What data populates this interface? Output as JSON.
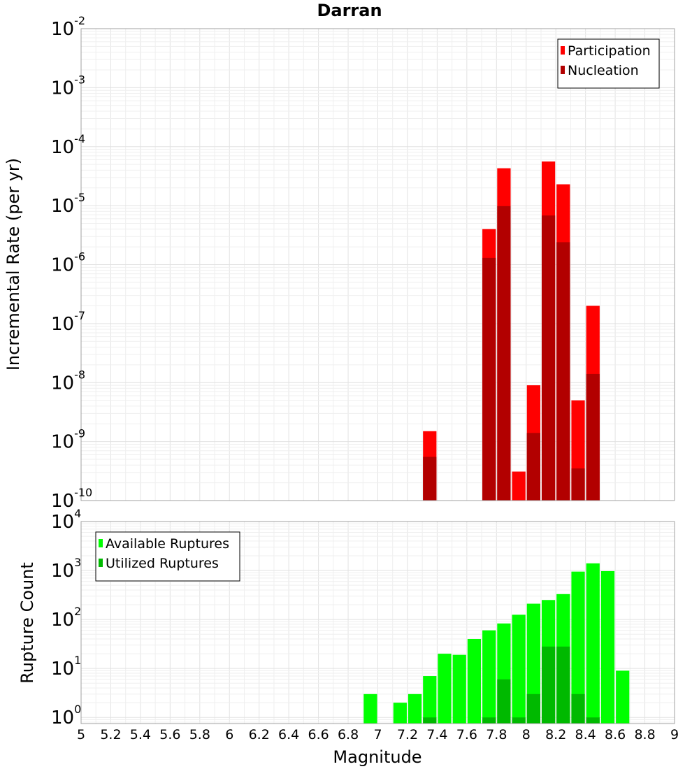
{
  "chart_data": [
    {
      "type": "bar",
      "title": "Darran",
      "xlabel": "",
      "ylabel": "Incremental Rate (per yr)",
      "yscale": "log",
      "xlim": [
        5,
        9
      ],
      "ylim": [
        1e-10,
        0.01
      ],
      "ytick_exponents": [
        "-2",
        "-3",
        "-4",
        "-5",
        "-6",
        "-7",
        "-8",
        "-9",
        "-10"
      ],
      "grid": true,
      "legend_position": "top-right",
      "bar_width": 0.1,
      "series": [
        {
          "name": "Participation",
          "color": "#ff0000",
          "x": [
            7.35,
            7.75,
            7.85,
            7.95,
            8.05,
            8.15,
            8.25,
            8.35,
            8.45
          ],
          "values": [
            1.5e-09,
            4e-06,
            4.3e-05,
            3.1e-10,
            9e-09,
            5.6e-05,
            2.3e-05,
            5e-09,
            2e-07
          ]
        },
        {
          "name": "Nucleation",
          "color": "#b20000",
          "x": [
            7.35,
            7.75,
            7.85,
            8.05,
            8.15,
            8.25,
            8.35,
            8.45
          ],
          "values": [
            5.5e-10,
            1.3e-06,
            9.8e-06,
            1.4e-09,
            6.8e-06,
            2.4e-06,
            3.5e-10,
            1.4e-08
          ]
        }
      ]
    },
    {
      "type": "bar",
      "title": "",
      "xlabel": "Magnitude",
      "ylabel": "Rupture Count",
      "yscale": "log",
      "xlim": [
        5,
        9
      ],
      "ylim": [
        0.75,
        10000
      ],
      "ytick_exponents": [
        "4",
        "3",
        "2",
        "1",
        "0"
      ],
      "xticks": [
        "5",
        "5.2",
        "5.4",
        "5.6",
        "5.8",
        "6",
        "6.2",
        "6.4",
        "6.6",
        "6.8",
        "7",
        "7.2",
        "7.4",
        "7.6",
        "7.8",
        "8",
        "8.2",
        "8.4",
        "8.6",
        "8.8",
        "9"
      ],
      "grid": true,
      "legend_position": "top-left",
      "bar_width": 0.1,
      "series": [
        {
          "name": "Available Ruptures",
          "color": "#00ff00",
          "x": [
            6.95,
            7.15,
            7.25,
            7.35,
            7.45,
            7.55,
            7.65,
            7.75,
            7.85,
            7.95,
            8.05,
            8.15,
            8.25,
            8.35,
            8.45,
            8.55,
            8.65
          ],
          "values": [
            3,
            2,
            3,
            7,
            20,
            19,
            40,
            60,
            83,
            125,
            210,
            250,
            330,
            950,
            1400,
            970,
            9
          ]
        },
        {
          "name": "Utilized Ruptures",
          "color": "#00b900",
          "x": [
            7.35,
            7.75,
            7.85,
            7.95,
            8.05,
            8.15,
            8.25,
            8.35,
            8.45
          ],
          "values": [
            1,
            1,
            6,
            1,
            3,
            28,
            28,
            3,
            1
          ]
        }
      ]
    }
  ]
}
